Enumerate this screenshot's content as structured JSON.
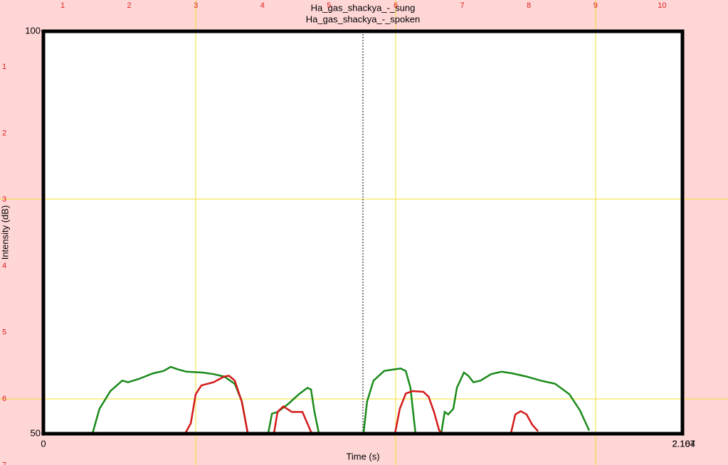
{
  "chart_data": [
    {
      "type": "line",
      "title": "Ha_gas_shackya_-_sung",
      "xlabel": "Time (s)",
      "ylabel": "Intensity (dB)",
      "xlim": [
        0,
        2.164
      ],
      "ylim": [
        50,
        100
      ],
      "xticks": [
        0,
        2.164
      ],
      "yticks": [
        50,
        100
      ],
      "cursor": 1.082,
      "series": [
        {
          "name": "Ha_gas_shackya_-_sung",
          "color": "#1a8a1a",
          "x": [
            0.166,
            0.19,
            0.227,
            0.267,
            0.287,
            0.323,
            0.371,
            0.407,
            0.431,
            0.455,
            0.484,
            0.54,
            0.576,
            0.612,
            0.648,
            0.672,
            0.692,
            null,
            0.761,
            0.774,
            0.793,
            0.829,
            0.865,
            0.894,
            0.906,
            0.918,
            0.933,
            null,
            1.084,
            1.096,
            1.118,
            1.154,
            1.19,
            1.21,
            1.227,
            1.243,
            1.26,
            null,
            1.347,
            1.359,
            1.371,
            1.388,
            1.4,
            1.424,
            1.439,
            1.456,
            1.48,
            1.516,
            1.552,
            1.588,
            1.636,
            1.684,
            1.733,
            1.781,
            1.817,
            1.848
          ],
          "values": [
            50,
            53.1,
            55.3,
            56.6,
            56.4,
            56.8,
            57.5,
            57.8,
            58.3,
            58.0,
            57.7,
            57.6,
            57.4,
            57.1,
            56.2,
            54.0,
            50,
            null,
            50,
            52.5,
            52.7,
            53.7,
            54.9,
            55.7,
            55.5,
            52.7,
            50,
            null,
            50,
            54.0,
            56.6,
            57.8,
            58.0,
            58.1,
            57.8,
            55.7,
            50,
            null,
            50,
            52.7,
            52.4,
            53.1,
            55.7,
            57.6,
            57.2,
            56.4,
            56.6,
            57.4,
            57.7,
            57.5,
            57.1,
            56.6,
            56.2,
            54.9,
            52.9,
            50.4
          ]
        }
      ]
    },
    {
      "type": "line",
      "title": "Ha_gas_shackya_-_spoken",
      "xlim": [
        0,
        2.107
      ],
      "ylim": [
        50,
        100
      ],
      "xticks": [
        2.107
      ],
      "series": [
        {
          "name": "Ha_gas_shackya_-_spoken",
          "color": "#d41a1a",
          "x": [
            0.467,
            0.486,
            0.502,
            0.521,
            0.561,
            0.596,
            0.612,
            0.631,
            0.654,
            0.674,
            null,
            0.76,
            0.772,
            0.791,
            0.819,
            0.854,
            0.87,
            0.885,
            null,
            1.159,
            1.175,
            1.195,
            1.218,
            1.253,
            1.27,
            1.288,
            1.305,
            1.316,
            null,
            1.541,
            1.556,
            1.574,
            1.593,
            1.612,
            1.631
          ],
          "values": [
            50,
            51.3,
            54.9,
            56.0,
            56.4,
            57.1,
            57.2,
            56.6,
            54.0,
            50,
            null,
            50,
            52.7,
            53.4,
            52.7,
            52.7,
            51.3,
            50,
            null,
            50,
            53.1,
            55.0,
            55.3,
            55.2,
            54.6,
            52.7,
            50.4,
            50,
            null,
            50,
            52.4,
            52.8,
            52.4,
            51.1,
            50.3
          ]
        }
      ]
    }
  ],
  "ruler": {
    "top": [
      1,
      2,
      3,
      4,
      5,
      6,
      7,
      8,
      9,
      10
    ],
    "left": [
      1,
      2,
      3,
      4,
      5,
      6,
      7
    ]
  }
}
